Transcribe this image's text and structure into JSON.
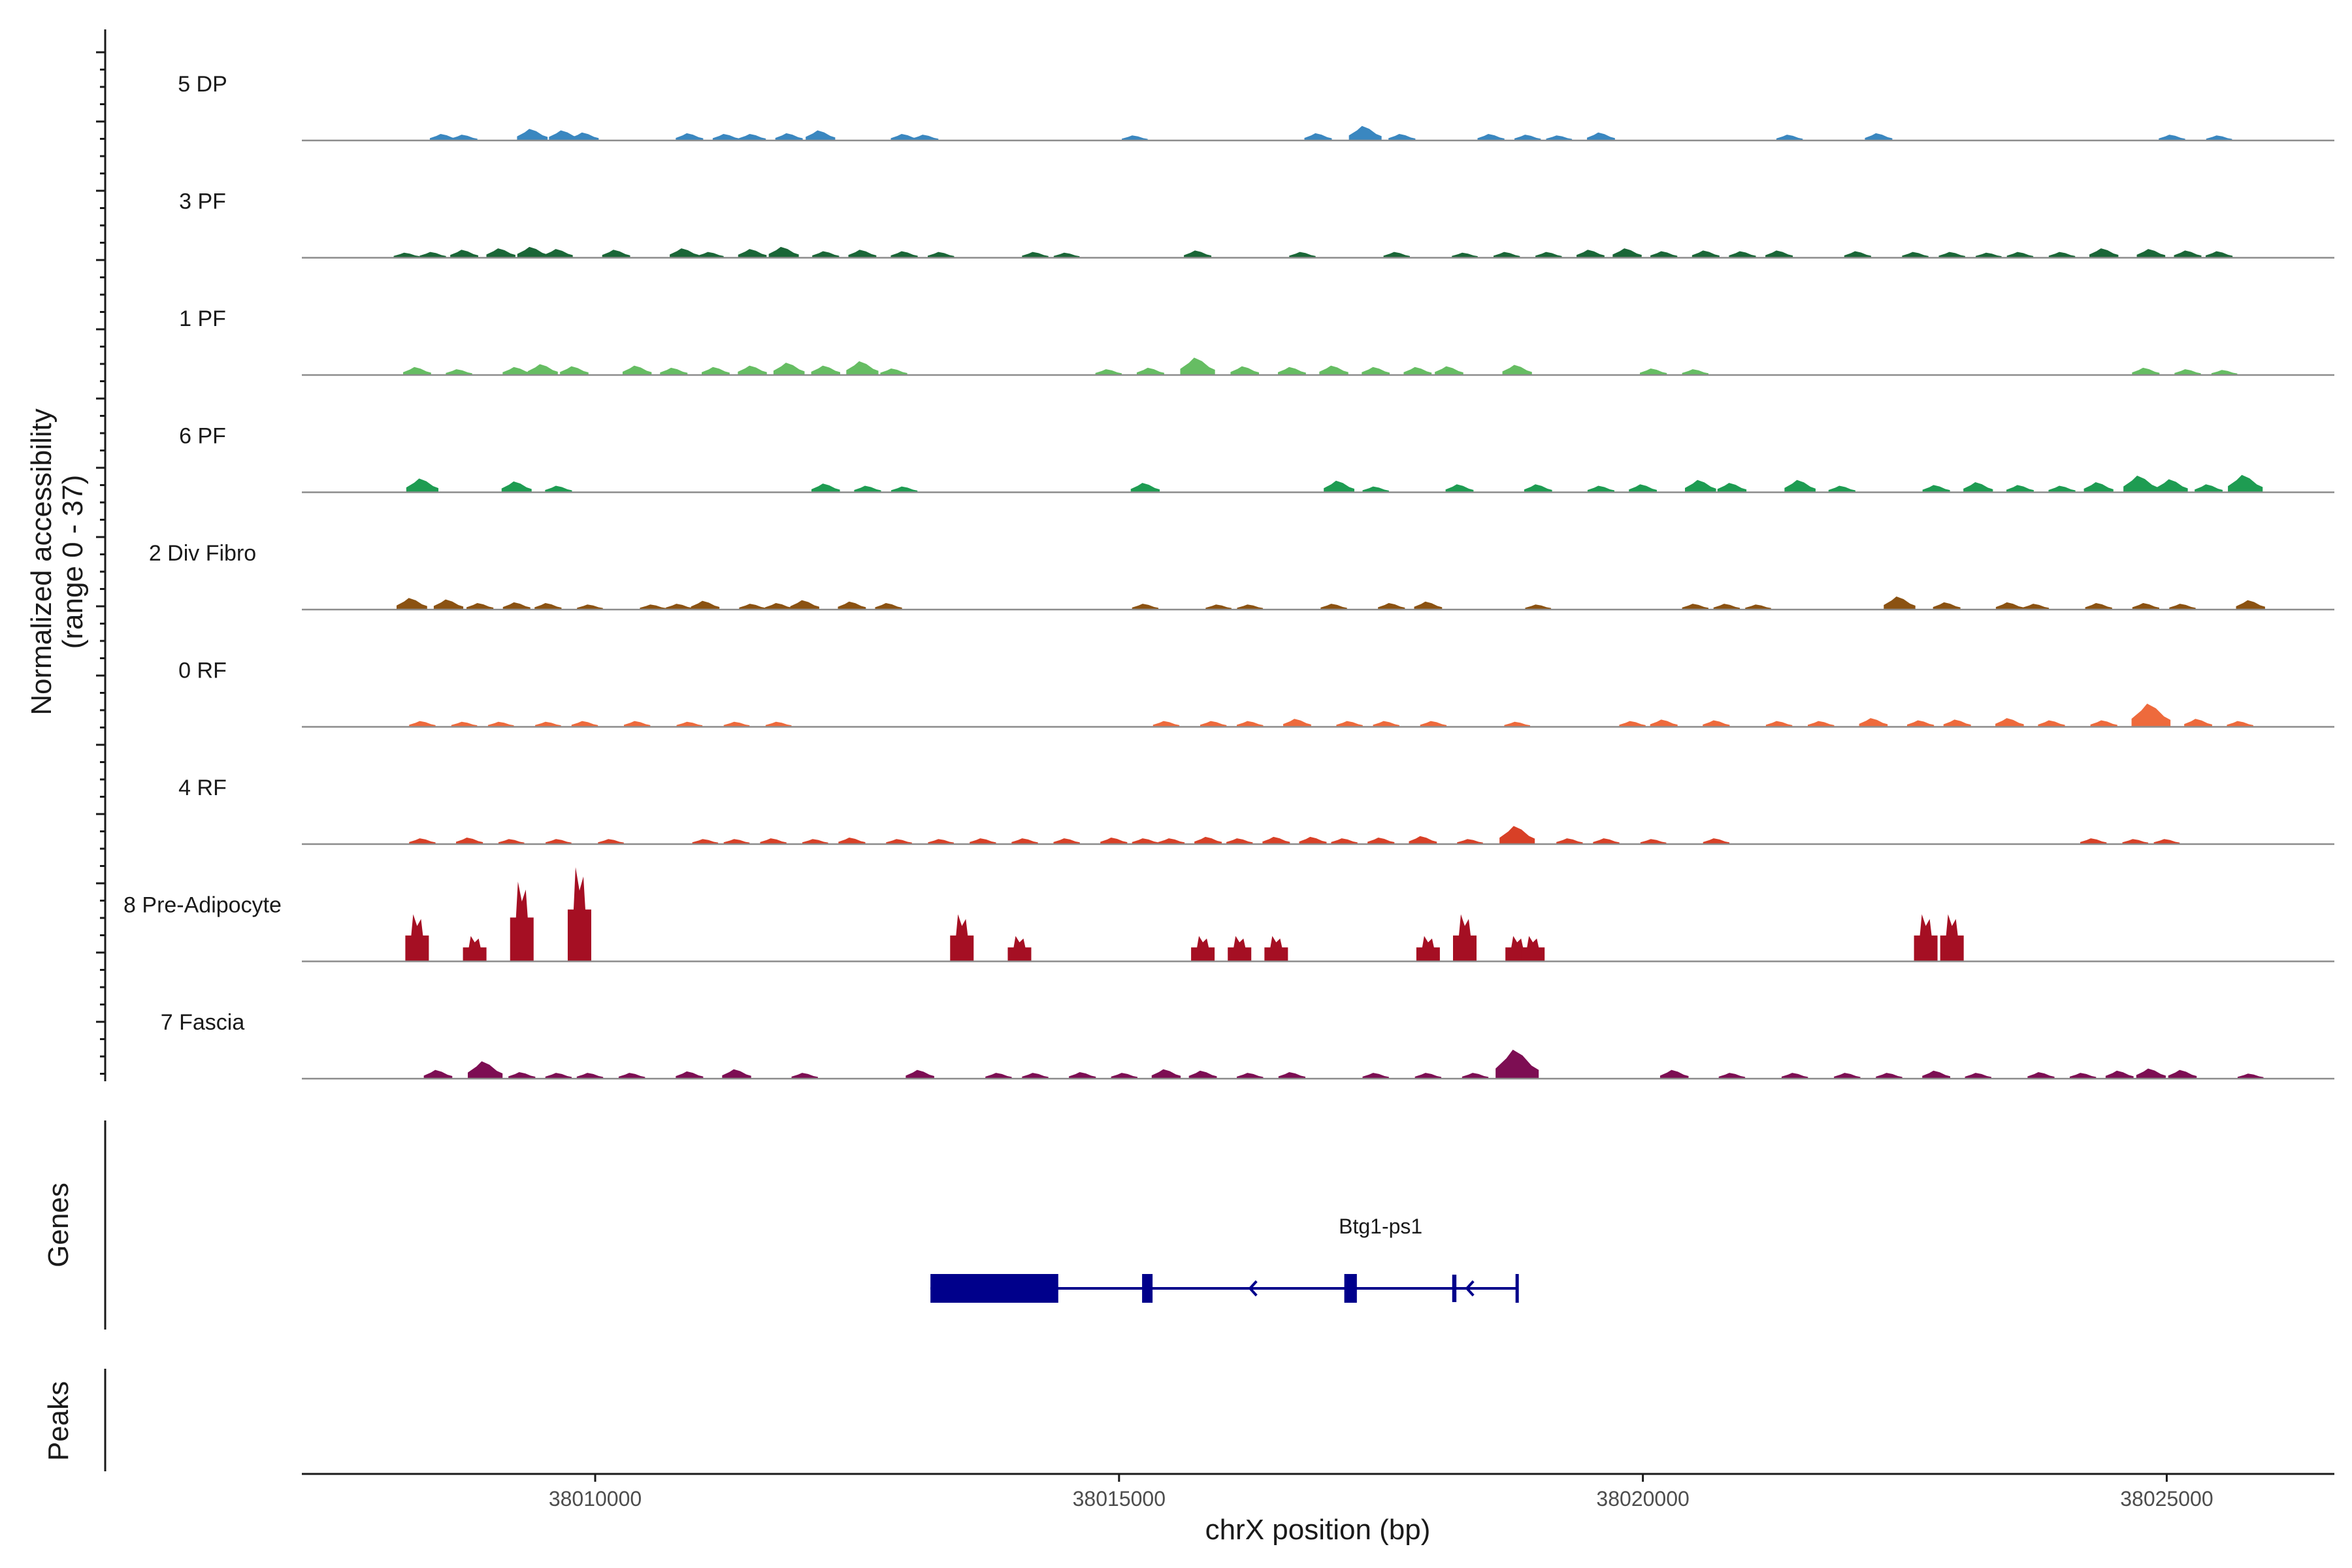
{
  "chart_data": {
    "type": "area",
    "description_kind": "genome coverage track",
    "y_axis_title_line1": "Normalized accessibility",
    "y_axis_title_line2": "(range 0 - 37)",
    "y_range": [
      0,
      37
    ],
    "x_axis_title": "chrX position (bp)",
    "x_range": [
      38007200,
      38026600
    ],
    "x_ticks": [
      38010000,
      38015000,
      38020000,
      38025000
    ],
    "x_tick_labels": [
      "38010000",
      "38015000",
      "38020000",
      "38025000"
    ],
    "genes_panel_title": "Genes",
    "peaks_panel_title": "Peaks",
    "tracks": [
      {
        "name": "5 DP",
        "color": "#3A87C0",
        "peaks": [
          [
            38008550,
            1.8
          ],
          [
            38008750,
            1.6
          ],
          [
            38009400,
            3.2
          ],
          [
            38009700,
            2.8
          ],
          [
            38009900,
            2.2
          ],
          [
            38010900,
            2.0
          ],
          [
            38011250,
            1.8
          ],
          [
            38011500,
            1.8
          ],
          [
            38011850,
            2.0
          ],
          [
            38012150,
            2.8
          ],
          [
            38012950,
            1.8
          ],
          [
            38013150,
            1.6
          ],
          [
            38015150,
            1.4
          ],
          [
            38016900,
            2.0
          ],
          [
            38017350,
            4.0
          ],
          [
            38017700,
            1.8
          ],
          [
            38018550,
            1.8
          ],
          [
            38018900,
            1.6
          ],
          [
            38019200,
            1.4
          ],
          [
            38019600,
            2.2
          ],
          [
            38021400,
            1.6
          ],
          [
            38022250,
            2.0
          ],
          [
            38025050,
            1.6
          ],
          [
            38025500,
            1.4
          ]
        ]
      },
      {
        "name": "3 PF",
        "color": "#1A6637",
        "peaks": [
          [
            38008200,
            1.4
          ],
          [
            38008450,
            1.6
          ],
          [
            38008750,
            2.2
          ],
          [
            38009100,
            2.6
          ],
          [
            38009400,
            3.0
          ],
          [
            38009650,
            2.4
          ],
          [
            38010200,
            2.2
          ],
          [
            38010850,
            2.6
          ],
          [
            38011100,
            1.6
          ],
          [
            38011500,
            2.4
          ],
          [
            38011800,
            3.0
          ],
          [
            38012200,
            1.8
          ],
          [
            38012550,
            2.2
          ],
          [
            38012950,
            1.8
          ],
          [
            38013300,
            1.6
          ],
          [
            38014200,
            1.6
          ],
          [
            38014500,
            1.4
          ],
          [
            38015750,
            2.0
          ],
          [
            38016750,
            1.6
          ],
          [
            38017650,
            1.6
          ],
          [
            38018300,
            1.4
          ],
          [
            38018700,
            1.6
          ],
          [
            38019100,
            1.6
          ],
          [
            38019500,
            2.2
          ],
          [
            38019850,
            2.6
          ],
          [
            38020200,
            1.8
          ],
          [
            38020600,
            2.0
          ],
          [
            38020950,
            1.8
          ],
          [
            38021300,
            2.0
          ],
          [
            38022050,
            1.8
          ],
          [
            38022600,
            1.6
          ],
          [
            38022950,
            1.6
          ],
          [
            38023300,
            1.4
          ],
          [
            38023600,
            1.6
          ],
          [
            38024000,
            1.6
          ],
          [
            38024400,
            2.6
          ],
          [
            38024850,
            2.4
          ],
          [
            38025200,
            2.0
          ],
          [
            38025500,
            1.8
          ]
        ]
      },
      {
        "name": "1 PF",
        "color": "#66BD63",
        "peaks": [
          [
            38008300,
            2.2
          ],
          [
            38008700,
            1.6
          ],
          [
            38009250,
            2.2
          ],
          [
            38009500,
            3.0
          ],
          [
            38009800,
            2.4
          ],
          [
            38010400,
            2.6
          ],
          [
            38010750,
            2.0
          ],
          [
            38011150,
            2.2
          ],
          [
            38011500,
            2.6
          ],
          [
            38011850,
            3.4
          ],
          [
            38012200,
            2.6
          ],
          [
            38012550,
            3.8
          ],
          [
            38012850,
            1.8
          ],
          [
            38014900,
            1.6
          ],
          [
            38015300,
            2.0
          ],
          [
            38015750,
            4.8
          ],
          [
            38016200,
            2.4
          ],
          [
            38016650,
            2.2
          ],
          [
            38017050,
            2.6
          ],
          [
            38017450,
            2.2
          ],
          [
            38017850,
            2.2
          ],
          [
            38018150,
            2.4
          ],
          [
            38018800,
            2.8
          ],
          [
            38020100,
            1.8
          ],
          [
            38020500,
            1.6
          ],
          [
            38024800,
            2.0
          ],
          [
            38025200,
            1.6
          ],
          [
            38025550,
            1.4
          ]
        ]
      },
      {
        "name": "6 PF",
        "color": "#1E9C52",
        "peaks": [
          [
            38008350,
            3.8
          ],
          [
            38009250,
            3.0
          ],
          [
            38009650,
            1.8
          ],
          [
            38012200,
            2.4
          ],
          [
            38012600,
            1.8
          ],
          [
            38012950,
            1.6
          ],
          [
            38015250,
            2.6
          ],
          [
            38017100,
            3.2
          ],
          [
            38017450,
            1.6
          ],
          [
            38018250,
            2.2
          ],
          [
            38019000,
            2.2
          ],
          [
            38019600,
            1.8
          ],
          [
            38020000,
            2.2
          ],
          [
            38020550,
            3.4
          ],
          [
            38020850,
            2.6
          ],
          [
            38021500,
            3.4
          ],
          [
            38021900,
            1.8
          ],
          [
            38022800,
            2.0
          ],
          [
            38023200,
            2.8
          ],
          [
            38023600,
            2.0
          ],
          [
            38024000,
            1.8
          ],
          [
            38024350,
            2.8
          ],
          [
            38024750,
            4.6
          ],
          [
            38025050,
            3.6
          ],
          [
            38025400,
            2.2
          ],
          [
            38025750,
            4.8
          ]
        ]
      },
      {
        "name": "2 Div Fibro",
        "color": "#8B5212",
        "peaks": [
          [
            38008250,
            3.2
          ],
          [
            38008600,
            2.8
          ],
          [
            38008900,
            1.8
          ],
          [
            38009250,
            2.0
          ],
          [
            38009550,
            1.8
          ],
          [
            38009950,
            1.4
          ],
          [
            38010550,
            1.4
          ],
          [
            38010800,
            1.6
          ],
          [
            38011050,
            2.4
          ],
          [
            38011500,
            1.6
          ],
          [
            38011750,
            1.8
          ],
          [
            38012000,
            2.6
          ],
          [
            38012450,
            2.2
          ],
          [
            38012800,
            1.8
          ],
          [
            38015250,
            1.6
          ],
          [
            38015950,
            1.4
          ],
          [
            38016250,
            1.4
          ],
          [
            38017050,
            1.6
          ],
          [
            38017600,
            1.8
          ],
          [
            38017950,
            2.2
          ],
          [
            38019000,
            1.4
          ],
          [
            38020500,
            1.6
          ],
          [
            38020800,
            1.6
          ],
          [
            38021100,
            1.4
          ],
          [
            38022450,
            3.6
          ],
          [
            38022900,
            2.0
          ],
          [
            38023500,
            2.0
          ],
          [
            38023750,
            1.6
          ],
          [
            38024350,
            1.8
          ],
          [
            38024800,
            1.8
          ],
          [
            38025150,
            1.6
          ],
          [
            38025800,
            2.6
          ]
        ]
      },
      {
        "name": "0 RF",
        "color": "#EE6A3C",
        "peaks": [
          [
            38008350,
            1.6
          ],
          [
            38008750,
            1.4
          ],
          [
            38009100,
            1.4
          ],
          [
            38009550,
            1.4
          ],
          [
            38009900,
            1.6
          ],
          [
            38010400,
            1.6
          ],
          [
            38010900,
            1.4
          ],
          [
            38011350,
            1.4
          ],
          [
            38011750,
            1.4
          ],
          [
            38015450,
            1.6
          ],
          [
            38015900,
            1.6
          ],
          [
            38016250,
            1.6
          ],
          [
            38016700,
            2.2
          ],
          [
            38017200,
            1.6
          ],
          [
            38017550,
            1.6
          ],
          [
            38018000,
            1.6
          ],
          [
            38018800,
            1.4
          ],
          [
            38019900,
            1.6
          ],
          [
            38020200,
            2.0
          ],
          [
            38020700,
            1.8
          ],
          [
            38021300,
            1.6
          ],
          [
            38021700,
            1.6
          ],
          [
            38022200,
            2.4
          ],
          [
            38022650,
            1.8
          ],
          [
            38023000,
            2.0
          ],
          [
            38023500,
            2.4
          ],
          [
            38023900,
            1.8
          ],
          [
            38024400,
            1.8
          ],
          [
            38024850,
            6.4
          ],
          [
            38025300,
            2.2
          ],
          [
            38025700,
            1.6
          ]
        ]
      },
      {
        "name": "4 RF",
        "color": "#D84027",
        "peaks": [
          [
            38008350,
            1.6
          ],
          [
            38008800,
            1.8
          ],
          [
            38009200,
            1.4
          ],
          [
            38009650,
            1.4
          ],
          [
            38010150,
            1.4
          ],
          [
            38011050,
            1.4
          ],
          [
            38011350,
            1.4
          ],
          [
            38011700,
            1.6
          ],
          [
            38012100,
            1.4
          ],
          [
            38012450,
            1.8
          ],
          [
            38012900,
            1.4
          ],
          [
            38013300,
            1.4
          ],
          [
            38013700,
            1.6
          ],
          [
            38014100,
            1.6
          ],
          [
            38014500,
            1.6
          ],
          [
            38014950,
            1.8
          ],
          [
            38015250,
            1.6
          ],
          [
            38015500,
            1.6
          ],
          [
            38015850,
            2.0
          ],
          [
            38016150,
            1.6
          ],
          [
            38016500,
            2.0
          ],
          [
            38016850,
            2.0
          ],
          [
            38017150,
            1.6
          ],
          [
            38017500,
            1.8
          ],
          [
            38017900,
            2.2
          ],
          [
            38018350,
            1.4
          ],
          [
            38018800,
            5.0
          ],
          [
            38019300,
            1.6
          ],
          [
            38019650,
            1.6
          ],
          [
            38020100,
            1.4
          ],
          [
            38020700,
            1.6
          ],
          [
            38024300,
            1.6
          ],
          [
            38024700,
            1.4
          ],
          [
            38025000,
            1.4
          ]
        ]
      },
      {
        "name": "8 Pre-Adipocyte",
        "color": "#A50F23",
        "peaks": [
          [
            38008300,
            13.0
          ],
          [
            38008850,
            7.0
          ],
          [
            38009300,
            22.0
          ],
          [
            38009850,
            26.0
          ],
          [
            38013500,
            13.0
          ],
          [
            38014050,
            7.0
          ],
          [
            38015800,
            7.0
          ],
          [
            38016150,
            7.0
          ],
          [
            38016500,
            7.0
          ],
          [
            38017950,
            7.0
          ],
          [
            38018300,
            13.0
          ],
          [
            38018800,
            7.0
          ],
          [
            38018950,
            7.0
          ],
          [
            38022700,
            13.0
          ],
          [
            38022950,
            13.0
          ]
        ]
      },
      {
        "name": "7 Fascia",
        "color": "#7D0E53",
        "peaks": [
          [
            38008500,
            2.4
          ],
          [
            38008950,
            4.8
          ],
          [
            38009300,
            1.8
          ],
          [
            38009650,
            1.6
          ],
          [
            38009950,
            1.6
          ],
          [
            38010350,
            1.6
          ],
          [
            38010900,
            2.0
          ],
          [
            38011350,
            2.6
          ],
          [
            38012000,
            1.6
          ],
          [
            38013100,
            2.4
          ],
          [
            38013850,
            1.6
          ],
          [
            38014200,
            1.6
          ],
          [
            38014650,
            1.8
          ],
          [
            38015050,
            1.6
          ],
          [
            38015450,
            2.6
          ],
          [
            38015800,
            2.2
          ],
          [
            38016250,
            1.6
          ],
          [
            38016650,
            1.8
          ],
          [
            38017450,
            1.6
          ],
          [
            38017950,
            1.6
          ],
          [
            38018400,
            1.6
          ],
          [
            38018800,
            8.0
          ],
          [
            38020300,
            2.4
          ],
          [
            38020850,
            1.6
          ],
          [
            38021450,
            1.6
          ],
          [
            38021950,
            1.6
          ],
          [
            38022350,
            1.6
          ],
          [
            38022800,
            2.2
          ],
          [
            38023200,
            1.6
          ],
          [
            38023800,
            1.8
          ],
          [
            38024200,
            1.6
          ],
          [
            38024550,
            2.2
          ],
          [
            38024850,
            2.8
          ],
          [
            38025150,
            2.4
          ],
          [
            38025800,
            1.4
          ]
        ]
      }
    ],
    "gene": {
      "name": "Btg1-ps1",
      "color": "#00008B",
      "start": 38013200,
      "end": 38018800,
      "strand": "-",
      "exons": [
        {
          "start": 38013200,
          "end": 38014420,
          "type": "utr_block"
        },
        {
          "start": 38015220,
          "end": 38015320,
          "type": "exon"
        },
        {
          "start": 38017150,
          "end": 38017270,
          "type": "exon"
        },
        {
          "start": 38018180,
          "end": 38018220,
          "type": "exon"
        }
      ],
      "strand_arrows": [
        38016250,
        38018320
      ]
    }
  }
}
